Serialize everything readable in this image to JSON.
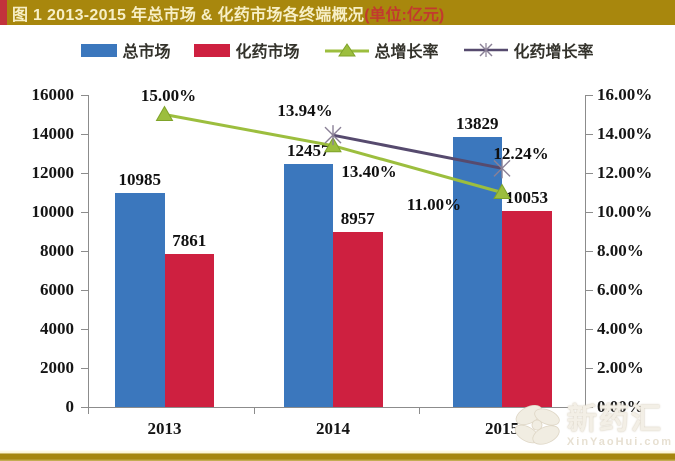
{
  "title": {
    "main": "图 1 2013-2015 年总市场 & 化药市场各终端概况",
    "unit": "(单位:亿元)"
  },
  "legend": {
    "items": [
      {
        "label": "总市场",
        "marker": "bar",
        "color": "#3B77BD"
      },
      {
        "label": "化药市场",
        "marker": "bar",
        "color": "#CE2040"
      },
      {
        "label": "总增长率",
        "marker": "line-triangle",
        "color": "#9CBE3E"
      },
      {
        "label": "化药增长率",
        "marker": "line-x",
        "color": "#564A6E"
      }
    ]
  },
  "chart_data": {
    "type": "bar",
    "title": "图 1 2013-2015 年总市场 & 化药市场各终端概况(单位:亿元)",
    "categories": [
      "2013",
      "2014",
      "2015"
    ],
    "series": [
      {
        "name": "总市场",
        "type": "bar",
        "axis": "left",
        "color": "#3B77BD",
        "values": [
          10985,
          12457,
          13829
        ],
        "labels": [
          "10985",
          "12457",
          "13829"
        ]
      },
      {
        "name": "化药市场",
        "type": "bar",
        "axis": "left",
        "color": "#CE2040",
        "values": [
          7861,
          8957,
          10053
        ],
        "labels": [
          "7861",
          "8957",
          "10053"
        ]
      },
      {
        "name": "总增长率",
        "type": "line",
        "axis": "right",
        "color": "#9CBE3E",
        "marker": "triangle",
        "values": [
          15.0,
          13.4,
          11.0
        ],
        "labels": [
          "15.00%",
          "13.40%",
          "11.00%"
        ]
      },
      {
        "name": "化药增长率",
        "type": "line",
        "axis": "right",
        "color": "#564A6E",
        "marker": "x",
        "values": [
          null,
          13.94,
          12.24
        ],
        "labels": [
          null,
          "13.94%",
          "12.24%"
        ]
      }
    ],
    "left_axis": {
      "min": 0,
      "max": 16000,
      "step": 2000,
      "tick_labels": [
        "16000",
        "14000",
        "12000",
        "10000",
        "8000",
        "6000",
        "4000",
        "2000",
        "0"
      ]
    },
    "right_axis": {
      "min": 0,
      "max": 16,
      "step": 2,
      "tick_labels": [
        "16.00%",
        "14.00%",
        "12.00%",
        "10.00%",
        "8.00%",
        "6.00%",
        "4.00%",
        "2.00%",
        "0.00%"
      ]
    },
    "legend_position": "top",
    "gridlines": false
  },
  "watermark": {
    "brand": "新药汇",
    "domain": "XinYaoHui.com"
  }
}
